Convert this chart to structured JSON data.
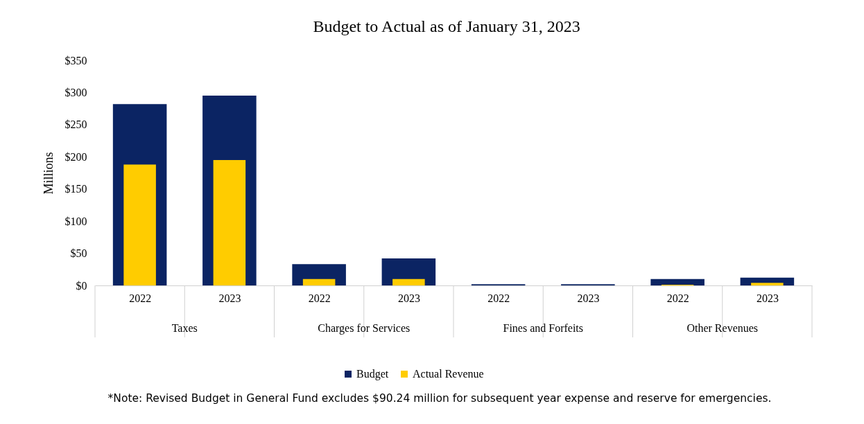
{
  "chart_data": {
    "type": "bar",
    "title": "Budget to Actual as of January 31, 2023",
    "ylabel": "Millions",
    "categories": [
      "2022",
      "2023",
      "2022",
      "2023",
      "2022",
      "2023",
      "2022",
      "2023"
    ],
    "series": [
      {
        "name": "Budget",
        "color": "#0b2463",
        "values": [
          282,
          295,
          33,
          42,
          2,
          2,
          10,
          12
        ]
      },
      {
        "name": "Actual Revenue",
        "color": "#ffcc00",
        "values": [
          188,
          195,
          10,
          10,
          0,
          0,
          1,
          4
        ]
      }
    ],
    "ylim": [
      0,
      350
    ],
    "yticks": [
      {
        "value": 0,
        "label": "$0"
      },
      {
        "value": 50,
        "label": "$50"
      },
      {
        "value": 100,
        "label": "$100"
      },
      {
        "value": 150,
        "label": "$150"
      },
      {
        "value": 200,
        "label": "$200"
      },
      {
        "value": 250,
        "label": "$250"
      },
      {
        "value": 300,
        "label": "$300"
      },
      {
        "value": 350,
        "label": "$350"
      }
    ],
    "grid": false,
    "legend": "bottom",
    "annotations": [
      "Taxes",
      "Charges for Services",
      "Fines and Forfeits",
      "Other Revenues",
      "*Note: Revised Budget in General Fund excludes $90.24 million for subsequent year expense and reserve for emergencies."
    ]
  }
}
